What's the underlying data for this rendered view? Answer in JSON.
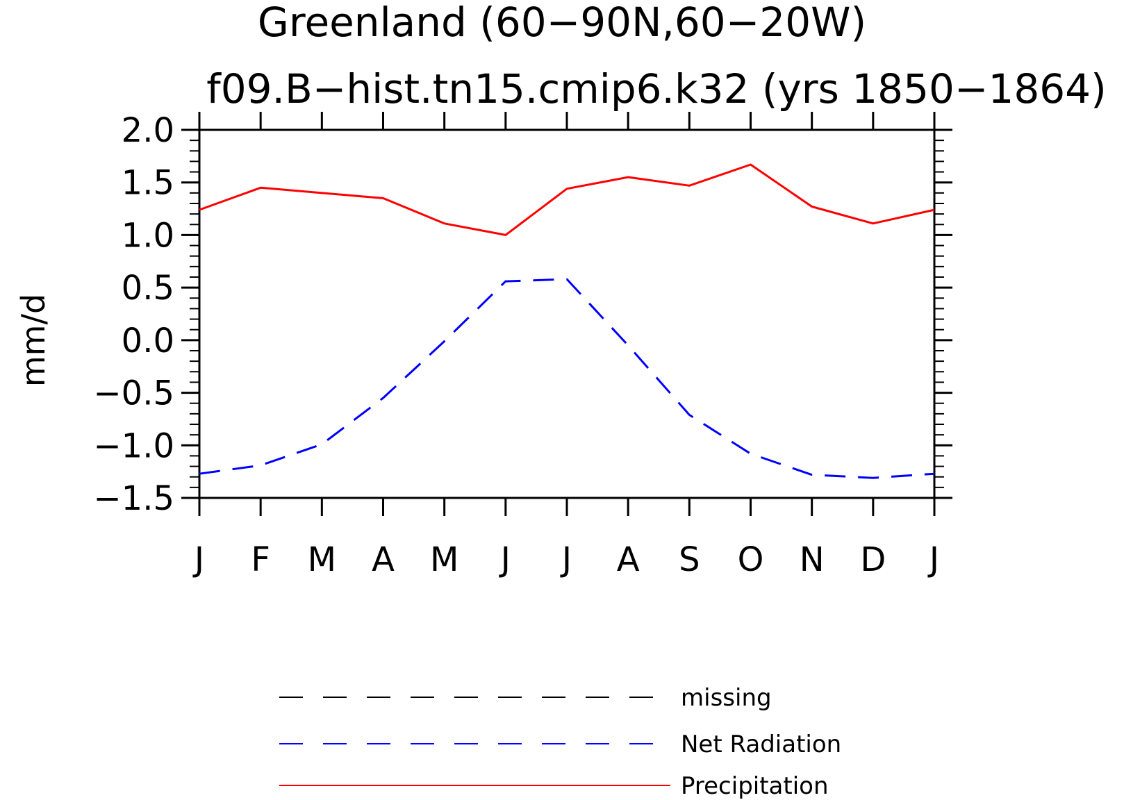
{
  "chart_data": {
    "type": "line",
    "title": "Greenland (60−90N,60−20W)",
    "subtitle": "f09.B−hist.tn15.cmip6.k32 (yrs 1850−1864)",
    "xlabel": "",
    "ylabel": "mm/d",
    "categories": [
      "J",
      "F",
      "M",
      "A",
      "M",
      "J",
      "J",
      "A",
      "S",
      "O",
      "N",
      "D",
      "J"
    ],
    "ylim": [
      -1.5,
      2.0
    ],
    "yticks": [
      2.0,
      1.5,
      1.0,
      0.5,
      0.0,
      -0.5,
      -1.0,
      -1.5
    ],
    "ytick_labels": [
      "2.0",
      "1.5",
      "1.0",
      "0.5",
      "0.0",
      "−0.5",
      "−1.0",
      "−1.5"
    ],
    "grid": false,
    "legend_position": "bottom",
    "series": [
      {
        "name": "Precipitation",
        "color": "#ff0000",
        "dash": "solid",
        "values": [
          1.24,
          1.45,
          1.4,
          1.35,
          1.11,
          1.0,
          1.44,
          1.55,
          1.47,
          1.67,
          1.27,
          1.11,
          1.24
        ]
      },
      {
        "name": "Net Radiation",
        "color": "#0000ff",
        "dash": "dashed",
        "values": [
          -1.27,
          -1.19,
          -0.99,
          -0.55,
          -0.01,
          0.56,
          0.58,
          -0.05,
          -0.71,
          -1.08,
          -1.28,
          -1.31,
          -1.27
        ]
      }
    ],
    "legend": [
      {
        "label": "missing",
        "color": "#000000",
        "dash": "dashed"
      },
      {
        "label": "Net Radiation",
        "color": "#0000ff",
        "dash": "dashed"
      },
      {
        "label": "Precipitation",
        "color": "#ff0000",
        "dash": "solid"
      }
    ]
  }
}
